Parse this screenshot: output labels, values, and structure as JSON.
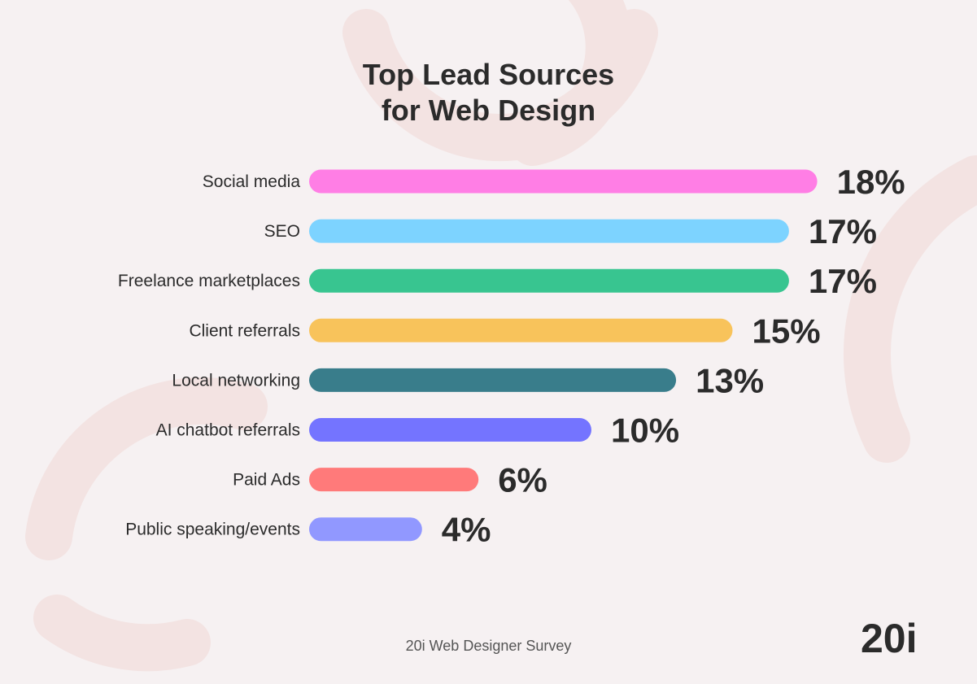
{
  "title_line1": "Top Lead Sources",
  "title_line2": "for Web Design",
  "source": "20i Web Designer Survey",
  "logo": "20i",
  "chart_data": {
    "type": "bar",
    "orientation": "horizontal",
    "categories": [
      "Social media",
      "SEO",
      "Freelance marketplaces",
      "Client referrals",
      "Local networking",
      "AI chatbot referrals",
      "Paid Ads",
      "Public speaking/events"
    ],
    "values": [
      18,
      17,
      17,
      15,
      13,
      10,
      6,
      4
    ],
    "value_labels": [
      "18%",
      "17%",
      "17%",
      "15%",
      "13%",
      "10%",
      "6%",
      "4%"
    ],
    "colors": [
      "#ff7ee5",
      "#7dd3ff",
      "#38c590",
      "#f8c35b",
      "#397d8b",
      "#7474ff",
      "#ff7a7a",
      "#9198ff"
    ],
    "unit": "%"
  }
}
